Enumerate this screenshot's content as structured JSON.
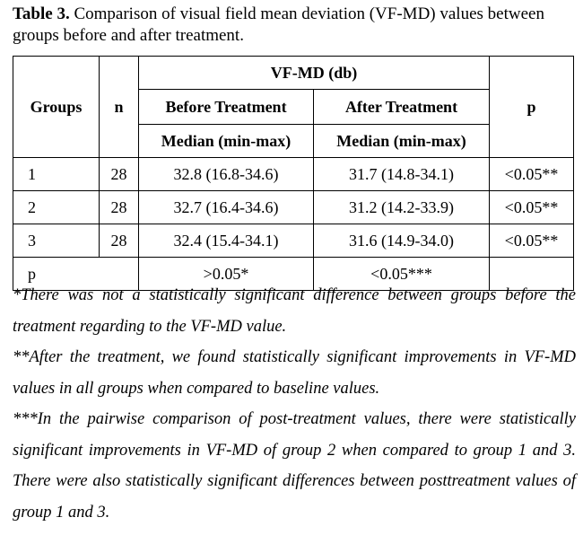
{
  "caption": {
    "label": "Table 3.",
    "text": " Comparison of visual field mean deviation (VF-MD) values between groups before and after treatment."
  },
  "table": {
    "headers": {
      "groups": "Groups",
      "n": "n",
      "vfmd": "VF-MD (db)",
      "before": "Before Treatment",
      "after": "After Treatment",
      "p": "p",
      "before_sub": "Median (min-max)",
      "after_sub": "Median (min-max)"
    },
    "rows": [
      {
        "group": "1",
        "n": "28",
        "before": "32.8 (16.8-34.6)",
        "after": "31.7 (14.8-34.1)",
        "p": "<0.05**"
      },
      {
        "group": "2",
        "n": "28",
        "before": "32.7 (16.4-34.6)",
        "after": "31.2 (14.2-33.9)",
        "p": "<0.05**"
      },
      {
        "group": "3",
        "n": "28",
        "before": "32.4 (15.4-34.1)",
        "after": "31.6 (14.9-34.0)",
        "p": "<0.05**"
      }
    ],
    "p_row": {
      "label": "p",
      "before": ">0.05*",
      "after": "<0.05***",
      "p": ""
    }
  },
  "notes": [
    "*There was not a statistically significant difference between groups before the treatment regarding to the VF-MD value.",
    "**After the treatment, we found statistically significant improvements in VF-MD values in all groups when compared to baseline values.",
    "***In the pairwise comparison of post-treatment values, there were statistically significant improvements in VF-MD of group 2 when compared to group 1 and 3. There were also statistically significant differences between posttreatment values of group 1 and 3."
  ]
}
